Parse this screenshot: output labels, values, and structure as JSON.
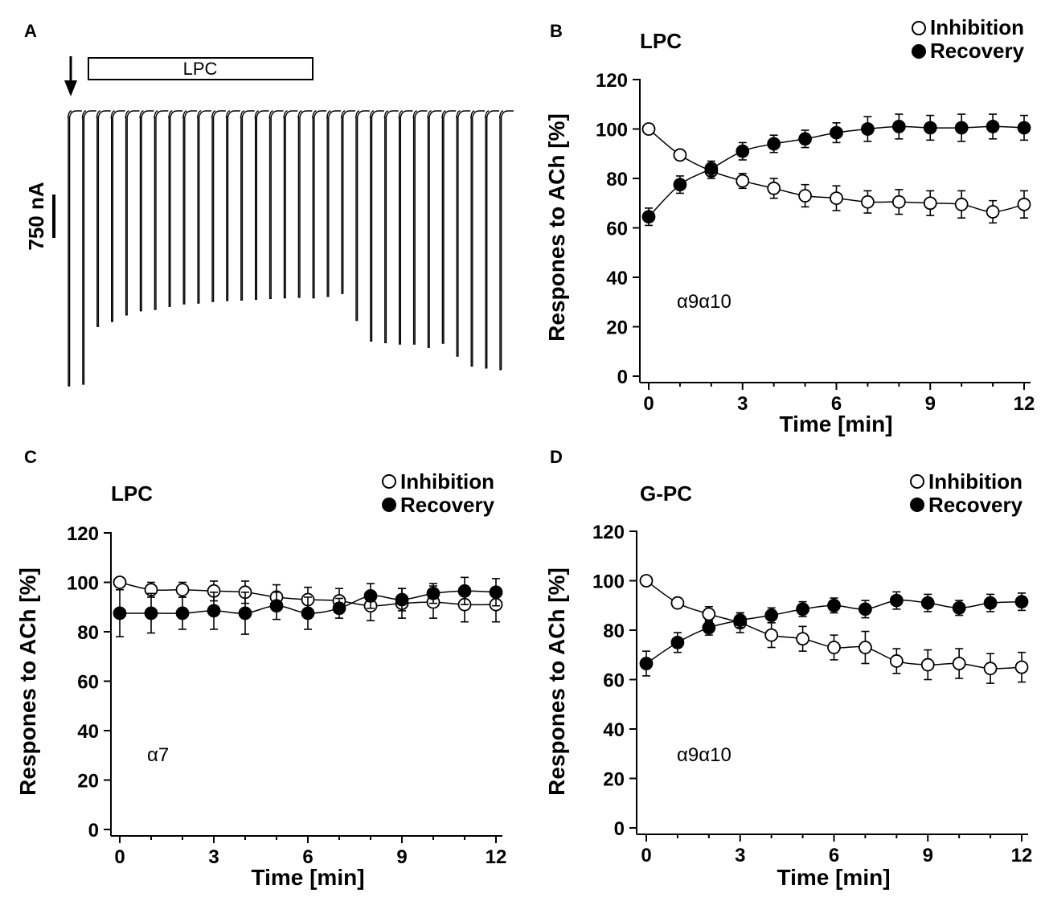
{
  "panelA": {
    "letter": "A",
    "bar_label": "LPC",
    "scale_label": "750 nA",
    "trace_peaks": [
      1.0,
      0.994,
      0.784,
      0.766,
      0.742,
      0.727,
      0.722,
      0.711,
      0.702,
      0.699,
      0.693,
      0.69,
      0.688,
      0.685,
      0.682,
      0.68,
      0.678,
      0.68,
      0.675,
      0.664,
      0.762,
      0.837,
      0.843,
      0.848,
      0.848,
      0.86,
      0.845,
      0.892,
      0.928,
      0.935,
      0.941
    ]
  },
  "chart_data": [
    {
      "panel": "B",
      "type": "scatter",
      "title": "LPC",
      "annotation": "α9α10",
      "xlabel": "Time [min]",
      "ylabel": "Respones to ACh [%]",
      "xlim": [
        0,
        12
      ],
      "ylim": [
        0,
        120
      ],
      "xticks": [
        0,
        3,
        6,
        9,
        12
      ],
      "yticks": [
        0,
        20,
        40,
        60,
        80,
        100,
        120
      ],
      "legend": [
        "Inhibition",
        "Recovery"
      ],
      "legend_position": "top-right",
      "series": [
        {
          "name": "Inhibition",
          "marker": "open-circle",
          "x": [
            0,
            1,
            2,
            3,
            4,
            5,
            6,
            7,
            8,
            9,
            10,
            11,
            12
          ],
          "y": [
            100,
            89.5,
            83,
            79,
            76,
            73,
            72,
            70.5,
            70.5,
            70,
            69.5,
            66.5,
            69.5
          ],
          "err": [
            0,
            2,
            3,
            3,
            4,
            4.5,
            5,
            4.5,
            5,
            5,
            5.5,
            4.5,
            5.5
          ]
        },
        {
          "name": "Recovery",
          "marker": "filled-circle",
          "x": [
            0,
            1,
            2,
            3,
            4,
            5,
            6,
            7,
            8,
            9,
            10,
            11,
            12
          ],
          "y": [
            64.5,
            77.5,
            84,
            91,
            94,
            96,
            98.5,
            100,
            101,
            100.5,
            100.5,
            101,
            100.5
          ],
          "err": [
            3.5,
            3.5,
            3,
            3.5,
            3.5,
            3.5,
            4,
            5,
            5,
            5,
            5.5,
            5,
            5
          ]
        }
      ]
    },
    {
      "panel": "C",
      "type": "scatter",
      "title": "LPC",
      "annotation": "α7",
      "xlabel": "Time [min]",
      "ylabel": "Respones to ACh [%]",
      "xlim": [
        0,
        12
      ],
      "ylim": [
        0,
        120
      ],
      "xticks": [
        0,
        3,
        6,
        9,
        12
      ],
      "yticks": [
        0,
        20,
        40,
        60,
        80,
        100,
        120
      ],
      "legend": [
        "Inhibition",
        "Recovery"
      ],
      "legend_position": "top-right",
      "series": [
        {
          "name": "Inhibition",
          "marker": "open-circle",
          "x": [
            0,
            1,
            2,
            3,
            4,
            5,
            6,
            7,
            8,
            9,
            10,
            11,
            12
          ],
          "y": [
            100,
            97,
            97,
            96.5,
            96,
            94,
            93,
            92.5,
            90.5,
            91.5,
            92,
            91,
            91
          ],
          "err": [
            0,
            3,
            3,
            4,
            4.5,
            5,
            5,
            5,
            6,
            6,
            6.5,
            7,
            7
          ]
        },
        {
          "name": "Recovery",
          "marker": "filled-circle",
          "x": [
            0,
            1,
            2,
            3,
            4,
            5,
            6,
            7,
            8,
            9,
            10,
            11,
            12
          ],
          "y": [
            87.5,
            87.5,
            87.5,
            88.5,
            87.5,
            90.5,
            87.5,
            89.5,
            94.5,
            93,
            95.5,
            96.5,
            96
          ],
          "err": [
            9.5,
            8,
            6.5,
            7.5,
            8.5,
            5.5,
            6.5,
            4,
            5,
            4.5,
            4,
            5.5,
            5.5
          ]
        }
      ]
    },
    {
      "panel": "D",
      "type": "scatter",
      "title": "G-PC",
      "annotation": "α9α10",
      "xlabel": "Time [min]",
      "ylabel": "Respones to ACh [%]",
      "xlim": [
        0,
        12
      ],
      "ylim": [
        0,
        120
      ],
      "xticks": [
        0,
        3,
        6,
        9,
        12
      ],
      "yticks": [
        0,
        20,
        40,
        60,
        80,
        100,
        120
      ],
      "legend": [
        "Inhibition",
        "Recovery"
      ],
      "legend_position": "top-right",
      "series": [
        {
          "name": "Inhibition",
          "marker": "open-circle",
          "x": [
            0,
            1,
            2,
            3,
            4,
            5,
            6,
            7,
            8,
            9,
            10,
            11,
            12
          ],
          "y": [
            100,
            91,
            86.5,
            83,
            78,
            76.5,
            73,
            73,
            67.5,
            66,
            66.5,
            64.5,
            65
          ],
          "err": [
            0,
            2,
            3,
            4,
            5,
            5,
            5,
            6.5,
            5,
            6,
            6,
            6,
            6
          ]
        },
        {
          "name": "Recovery",
          "marker": "filled-circle",
          "x": [
            0,
            1,
            2,
            3,
            4,
            5,
            6,
            7,
            8,
            9,
            10,
            11,
            12
          ],
          "y": [
            66.5,
            75,
            81,
            84,
            86,
            88.5,
            90,
            88.5,
            92,
            91,
            89,
            91,
            91.5
          ],
          "err": [
            5,
            4,
            3,
            3,
            3,
            3,
            3,
            3.5,
            3.5,
            3.5,
            3,
            3.5,
            3.5
          ]
        }
      ]
    }
  ]
}
